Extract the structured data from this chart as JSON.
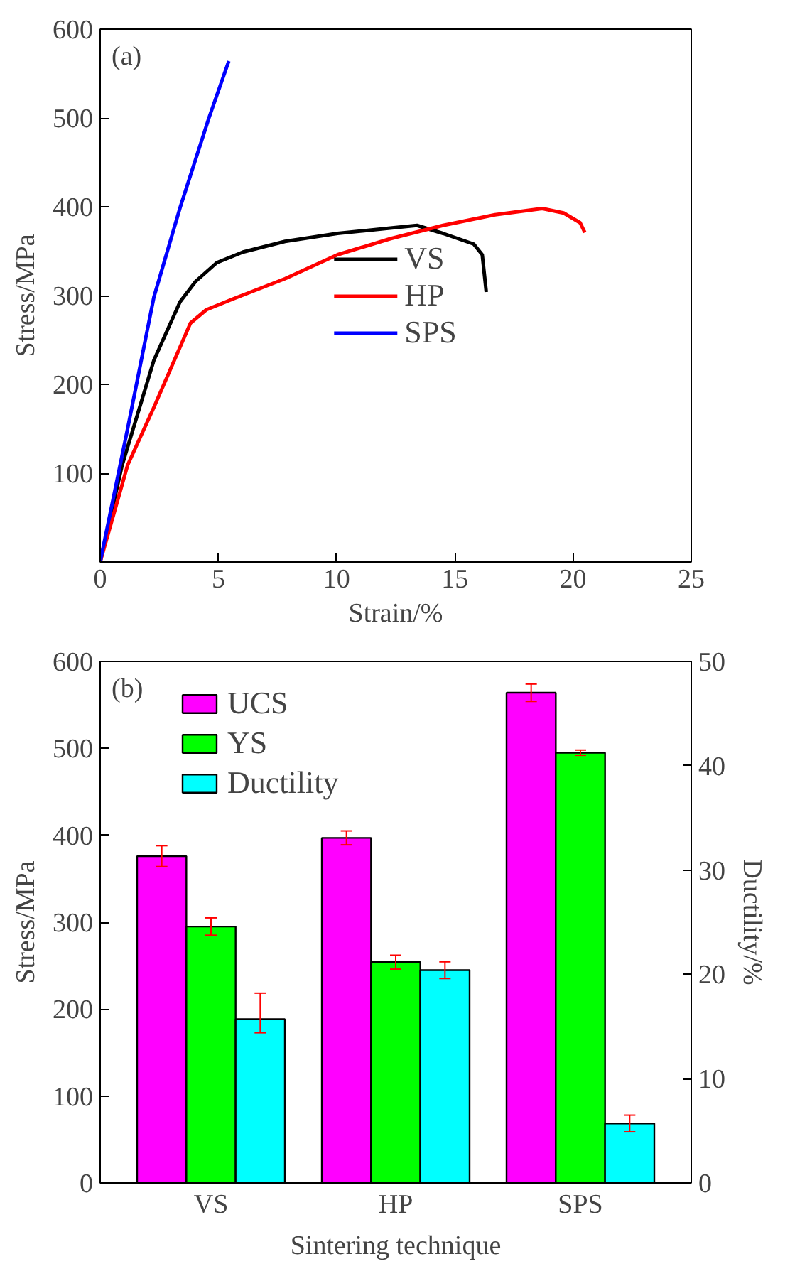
{
  "chart_data": [
    {
      "type": "line",
      "xlabel": "Strain/%",
      "ylabel": "Stress/MPa",
      "annotations": [
        "(a)"
      ],
      "xlim": [
        0,
        25
      ],
      "ylim": [
        0,
        600
      ],
      "xticks": [
        0,
        5,
        10,
        15,
        20,
        25
      ],
      "yticks": [
        {
          "value": 0,
          "label": null
        },
        100,
        200,
        300,
        400,
        500,
        600
      ],
      "grid": false,
      "legend": "center",
      "line_style": "solid",
      "series": [
        {
          "name": "VS",
          "color": "#000000",
          "x": [
            0,
            0.93,
            2.27,
            3.38,
            4.04,
            4.93,
            6.04,
            7.82,
            10.04,
            12.27,
            13.4,
            14.5,
            15.8,
            16.16,
            16.33
          ],
          "values": [
            0,
            109,
            227,
            293,
            316,
            337,
            349,
            361,
            370,
            376,
            379,
            370,
            358,
            346,
            304
          ]
        },
        {
          "name": "HP",
          "color": "#ff0000",
          "x": [
            0,
            1.16,
            2.27,
            3.82,
            4.49,
            5.6,
            7.82,
            10.04,
            12.27,
            14.5,
            16.7,
            18.7,
            19.6,
            20.3,
            20.5
          ],
          "values": [
            0,
            109,
            174,
            269,
            284,
            296,
            319,
            346,
            364,
            379,
            391,
            398,
            393,
            382,
            371
          ]
        },
        {
          "name": "SPS",
          "color": "#0000ff",
          "x": [
            0,
            1.16,
            2.27,
            3.38,
            4.6,
            5.44
          ],
          "values": [
            0,
            150,
            298,
            399,
            500,
            564
          ]
        }
      ]
    },
    {
      "type": "bar",
      "xlabel": "Sintering technique",
      "ylabel": "Stress/MPa",
      "y2label": "Ductility/%",
      "annotations": [
        "(b)"
      ],
      "categories": [
        "VS",
        "HP",
        "SPS"
      ],
      "ylim": [
        0,
        600
      ],
      "yticks": [
        0,
        100,
        200,
        300,
        400,
        500,
        600
      ],
      "y2lim": [
        0,
        50
      ],
      "y2ticks": [
        0,
        10,
        20,
        30,
        40,
        50
      ],
      "grid": false,
      "legend": "top left",
      "series": [
        {
          "name": "UCS",
          "color": "#ff00ff",
          "values": [
            376,
            397,
            564
          ],
          "errors": [
            12,
            8,
            10
          ]
        },
        {
          "name": "YS",
          "color": "#00ff00",
          "values": [
            295,
            254,
            495
          ],
          "errors": [
            10,
            8,
            3
          ]
        },
        {
          "name": "Ductility",
          "color": "#00ffff",
          "axis": "y2",
          "values": [
            15.7,
            20.4,
            5.7
          ],
          "errors": [
            [
              14.4,
              18.2
            ],
            0.8,
            0.8
          ]
        }
      ]
    }
  ]
}
